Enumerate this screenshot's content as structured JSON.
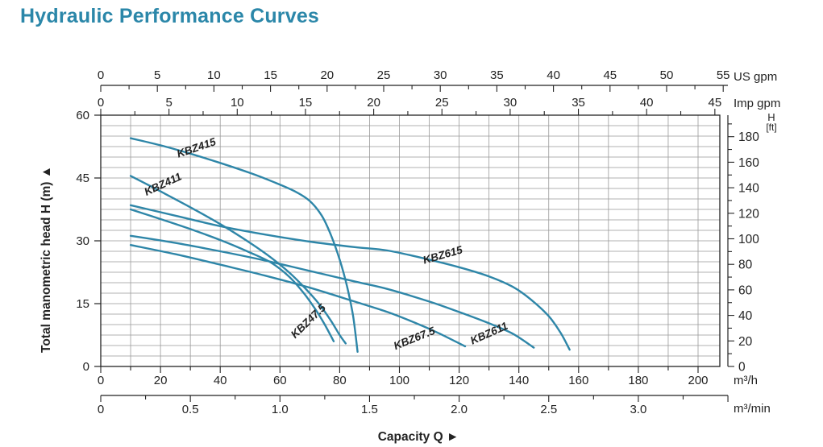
{
  "page": {
    "title": "Hydraulic Performance Curves",
    "title_color": "#2b87a9"
  },
  "chart_data": {
    "type": "line",
    "title": "Hydraulic Performance Curves",
    "xlabel": "Capacity Q",
    "xlabel_arrow": "►",
    "ylabel": "Total manometric head H (m)",
    "ylabel_arrow": "▲",
    "curve_color": "#2e86a8",
    "grid_color": "#999999",
    "axis_color": "#222222",
    "axes": {
      "top_us": {
        "unit": "US gpm",
        "min": 0,
        "max": 55,
        "label_step": 5,
        "minor_step": 2.5
      },
      "top_imp": {
        "unit": "Imp gpm",
        "min": 0,
        "max": 45,
        "label_step": 5,
        "minor_step": 2.5
      },
      "bottom_m3h": {
        "unit": "m³/h",
        "min": 0,
        "max": 200,
        "label_step": 20,
        "minor_step": 10
      },
      "bottom_m3min": {
        "unit": "m³/min",
        "min": 0,
        "max": 3.5,
        "label_step": 0.5,
        "minor_step": 0.25,
        "label_max": 3.0
      },
      "left_m": {
        "unit": "m",
        "min": 0,
        "max": 60,
        "label_step": 15,
        "grid_step": 2.5
      },
      "right_ft": {
        "unit": "[ft]",
        "header": "H",
        "min": 0,
        "max": 190,
        "label_step": 20,
        "minor_step": 10,
        "label_max": 180
      }
    },
    "x_grid_step": 10,
    "y_grid_step": 2.5,
    "series": [
      {
        "name": "KBZ415",
        "label_at": [
          32,
          52.2
        ],
        "label_rotation": -19,
        "points": [
          [
            10,
            54.5
          ],
          [
            20,
            52.8
          ],
          [
            30,
            50.8
          ],
          [
            40,
            48.6
          ],
          [
            50,
            46.2
          ],
          [
            58,
            44
          ],
          [
            65,
            41.8
          ],
          [
            70,
            39.5
          ],
          [
            74,
            36
          ],
          [
            77,
            31.5
          ],
          [
            80,
            25.5
          ],
          [
            82.5,
            19
          ],
          [
            84.5,
            12
          ],
          [
            86,
            3.5
          ]
        ]
      },
      {
        "name": "KBZ411",
        "label_at": [
          20.8,
          43.5
        ],
        "label_rotation": -25,
        "points": [
          [
            10,
            45.5
          ],
          [
            20,
            41.8
          ],
          [
            30,
            38
          ],
          [
            40,
            34
          ],
          [
            50,
            29.5
          ],
          [
            57,
            26
          ],
          [
            63,
            22.5
          ],
          [
            68,
            19
          ],
          [
            73,
            15
          ],
          [
            77,
            11
          ],
          [
            80,
            7.5
          ],
          [
            82,
            5.5
          ]
        ]
      },
      {
        "name": "KBZ47.5",
        "label_at": [
          69.5,
          10.8
        ],
        "label_rotation": -44,
        "points": [
          [
            10,
            37.5
          ],
          [
            20,
            35.2
          ],
          [
            30,
            32.8
          ],
          [
            40,
            30.2
          ],
          [
            50,
            27.2
          ],
          [
            57,
            24.8
          ],
          [
            63,
            21.5
          ],
          [
            68,
            17.5
          ],
          [
            72,
            13.5
          ],
          [
            75,
            10
          ],
          [
            78,
            6
          ]
        ]
      },
      {
        "name": "KBZ615",
        "label_at": [
          114.5,
          26.6
        ],
        "label_rotation": -16,
        "points": [
          [
            10,
            38.5
          ],
          [
            25,
            36
          ],
          [
            40,
            33.5
          ],
          [
            55,
            31.5
          ],
          [
            70,
            29.8
          ],
          [
            85,
            28.5
          ],
          [
            96,
            27.7
          ],
          [
            110,
            25.5
          ],
          [
            120,
            23.7
          ],
          [
            130,
            21.5
          ],
          [
            138,
            19
          ],
          [
            144,
            16
          ],
          [
            150,
            12
          ],
          [
            154,
            8
          ],
          [
            157,
            4
          ]
        ]
      },
      {
        "name": "KBZ611",
        "label_at": [
          130,
          7.9
        ],
        "label_rotation": -24,
        "points": [
          [
            10,
            31.2
          ],
          [
            25,
            29.5
          ],
          [
            40,
            27.5
          ],
          [
            55,
            25.3
          ],
          [
            70,
            22.8
          ],
          [
            85,
            20.3
          ],
          [
            96,
            18.5
          ],
          [
            110,
            15.5
          ],
          [
            120,
            13
          ],
          [
            130,
            10.3
          ],
          [
            138,
            7.8
          ],
          [
            145,
            4.5
          ]
        ]
      },
      {
        "name": "KBZ67.5",
        "label_at": [
          105,
          6.7
        ],
        "label_rotation": -22,
        "points": [
          [
            10,
            29
          ],
          [
            25,
            26.8
          ],
          [
            40,
            24.3
          ],
          [
            55,
            21.7
          ],
          [
            70,
            18.8
          ],
          [
            85,
            15.5
          ],
          [
            96,
            13
          ],
          [
            105,
            10.5
          ],
          [
            113,
            8
          ],
          [
            122,
            4.8
          ]
        ]
      }
    ]
  }
}
